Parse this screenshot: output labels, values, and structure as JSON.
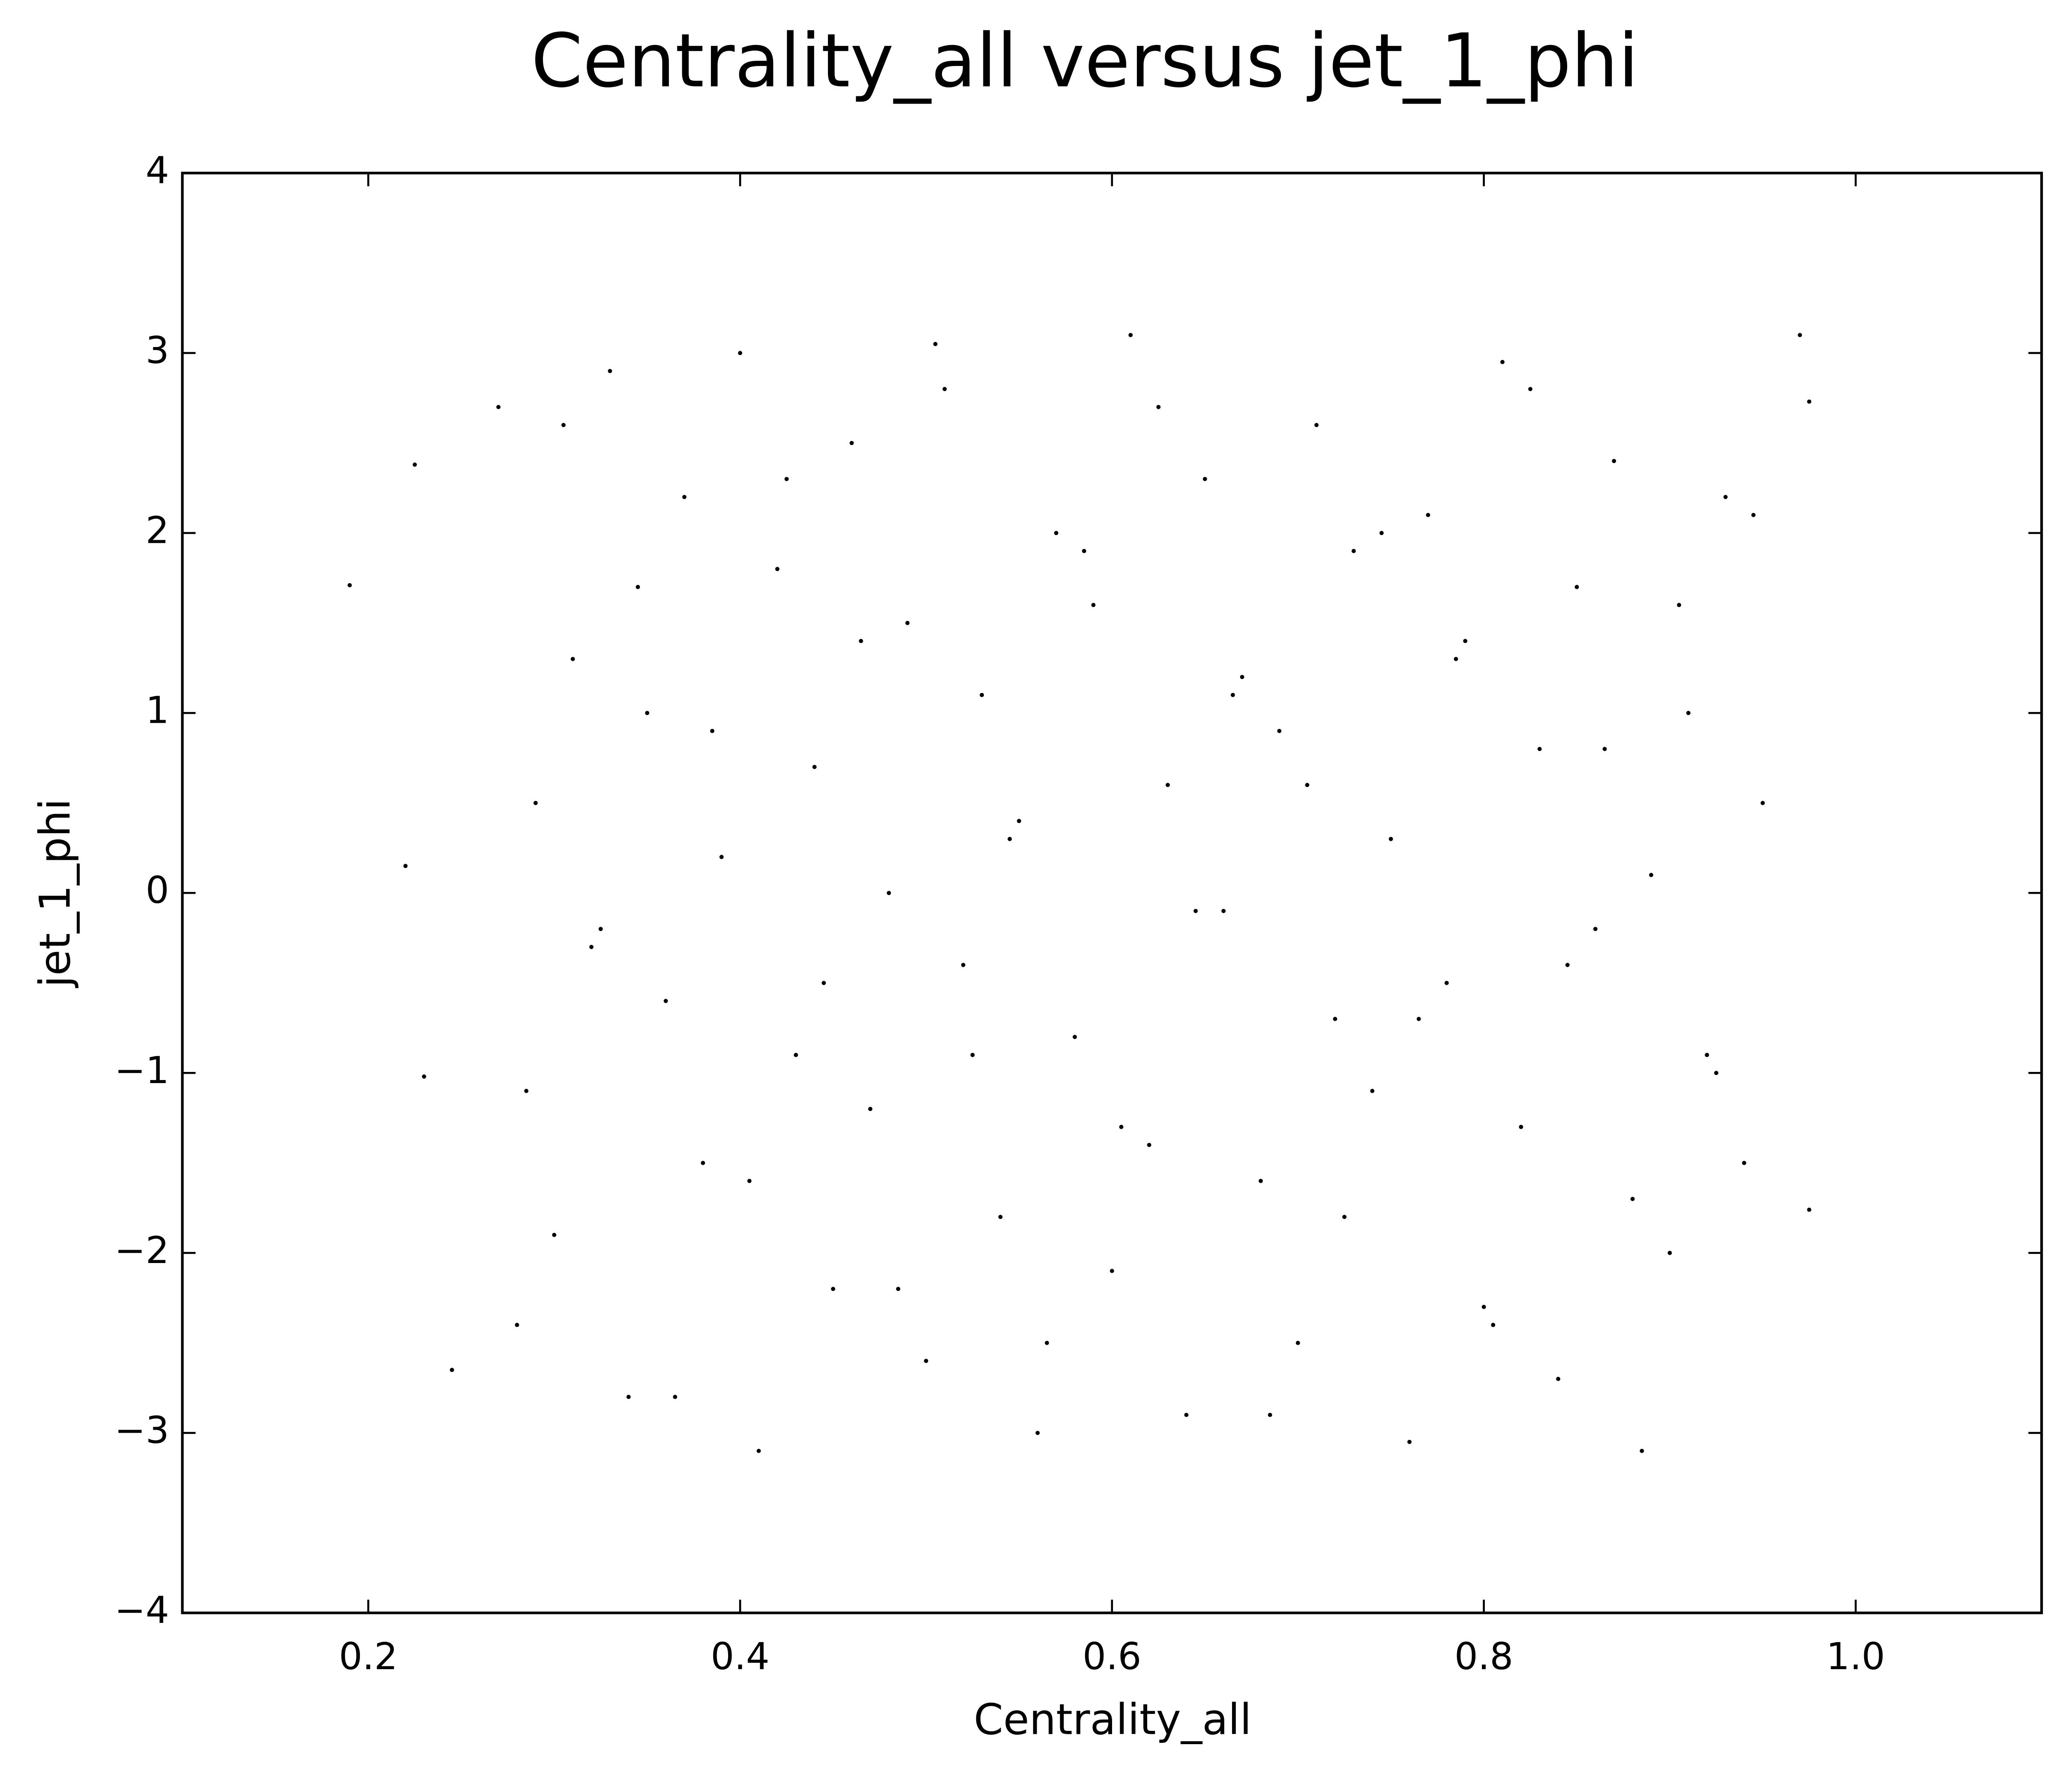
{
  "chart_data": {
    "type": "scatter",
    "title": "Centrality_all versus jet_1_phi",
    "x_label": "Centrality_all",
    "y_label": "jet_1_phi",
    "xlim": [
      0.1,
      1.1
    ],
    "ylim": [
      -4,
      4
    ],
    "xticks": [
      0.2,
      0.4,
      0.6,
      0.8,
      {
        "value": 1,
        "label": "1.0"
      }
    ],
    "yticks": [
      {
        "value": -4,
        "label": "−4"
      },
      {
        "value": -3,
        "label": "−3"
      },
      {
        "value": -2,
        "label": "−2"
      },
      {
        "value": -1,
        "label": "−1"
      },
      0,
      1,
      2,
      3,
      4
    ],
    "series": [
      {
        "color": "#000000",
        "x": [
          0.19,
          0.22,
          0.23,
          0.225,
          0.245,
          0.975,
          0.975,
          0.97,
          0.27,
          0.28,
          0.29,
          0.3,
          0.31,
          0.32,
          0.33,
          0.34,
          0.35,
          0.36,
          0.37,
          0.38,
          0.39,
          0.4,
          0.41,
          0.42,
          0.43,
          0.44,
          0.45,
          0.46,
          0.47,
          0.48,
          0.49,
          0.5,
          0.51,
          0.52,
          0.53,
          0.54,
          0.55,
          0.56,
          0.57,
          0.58,
          0.59,
          0.6,
          0.61,
          0.62,
          0.63,
          0.64,
          0.65,
          0.66,
          0.67,
          0.68,
          0.69,
          0.7,
          0.71,
          0.72,
          0.73,
          0.74,
          0.75,
          0.76,
          0.77,
          0.78,
          0.79,
          0.8,
          0.81,
          0.82,
          0.83,
          0.84,
          0.85,
          0.86,
          0.87,
          0.88,
          0.89,
          0.9,
          0.91,
          0.92,
          0.93,
          0.94,
          0.95,
          0.285,
          0.305,
          0.325,
          0.345,
          0.365,
          0.385,
          0.405,
          0.425,
          0.445,
          0.465,
          0.485,
          0.505,
          0.525,
          0.545,
          0.565,
          0.585,
          0.605,
          0.625,
          0.645,
          0.665,
          0.685,
          0.705,
          0.725,
          0.745,
          0.765,
          0.785,
          0.805,
          0.825,
          0.845,
          0.865,
          0.885,
          0.905,
          0.925,
          0.945
        ],
        "y": [
          1.71,
          0.15,
          -1.02,
          2.38,
          -2.65,
          2.73,
          -1.76,
          3.1,
          2.7,
          -2.4,
          0.5,
          -1.9,
          1.3,
          -0.3,
          2.9,
          -2.8,
          1.0,
          -0.6,
          2.2,
          -1.5,
          0.2,
          3.0,
          -3.1,
          1.8,
          -0.9,
          0.7,
          -2.2,
          2.5,
          -1.2,
          0.0,
          1.5,
          -2.6,
          2.8,
          -0.4,
          1.1,
          -1.8,
          0.4,
          -3.0,
          2.0,
          -0.8,
          1.6,
          -2.1,
          3.1,
          -1.4,
          0.6,
          -2.9,
          2.3,
          -0.1,
          1.2,
          -1.6,
          0.9,
          -2.5,
          2.6,
          -0.7,
          1.9,
          -1.1,
          0.3,
          -3.05,
          2.1,
          -0.5,
          1.4,
          -2.3,
          2.95,
          -1.3,
          0.8,
          -2.7,
          1.7,
          -0.2,
          2.4,
          -1.7,
          0.1,
          -2.0,
          1.0,
          -0.9,
          2.2,
          -1.5,
          0.5,
          -1.1,
          2.6,
          -0.2,
          1.7,
          -2.8,
          0.9,
          -1.6,
          2.3,
          -0.5,
          1.4,
          -2.2,
          3.05,
          -0.9,
          0.3,
          -2.5,
          1.9,
          -1.3,
          2.7,
          -0.1,
          1.1,
          -2.9,
          0.6,
          -1.8,
          2.0,
          -0.7,
          1.3,
          -2.4,
          2.8,
          -0.4,
          0.8,
          -3.1,
          1.6,
          -1.0,
          2.1
        ]
      }
    ]
  }
}
